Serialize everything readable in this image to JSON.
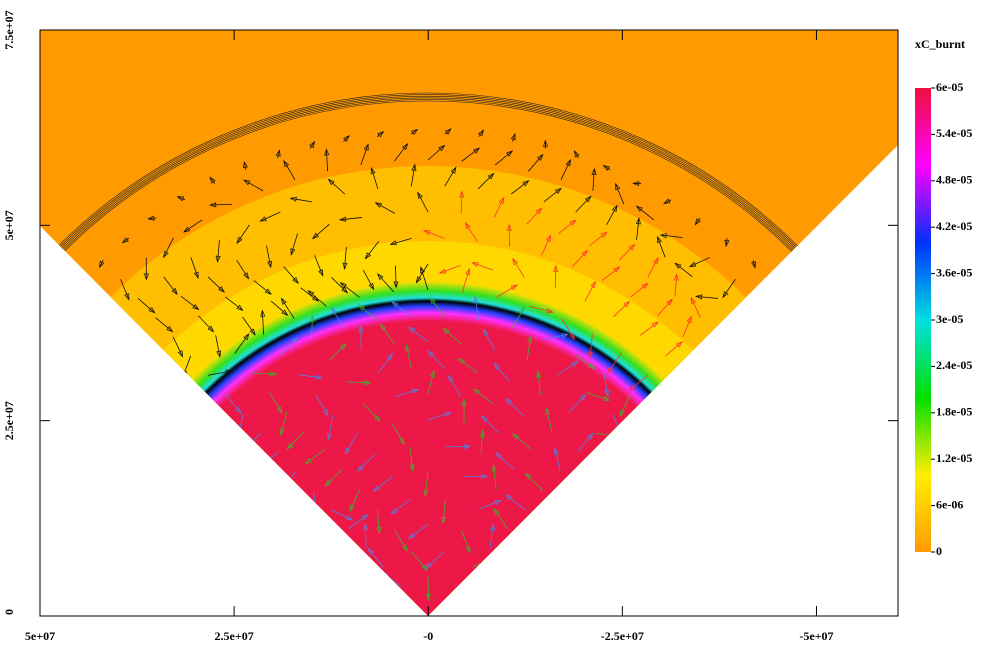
{
  "chart_data": {
    "type": "field",
    "colorbar_label": "xC_burnt",
    "xlim": [
      50000000,
      -60500000
    ],
    "ylim": [
      0,
      75000000
    ],
    "xticks": [
      {
        "value": 50000000,
        "label": "5e+07"
      },
      {
        "value": 25000000,
        "label": "2.5e+07"
      },
      {
        "value": 0,
        "label": "-0"
      },
      {
        "value": -25000000,
        "label": "-2.5e+07"
      },
      {
        "value": -50000000,
        "label": "-5e+07"
      }
    ],
    "yticks": [
      0,
      {
        "value": 25000000,
        "label": "2.5e+07"
      },
      {
        "value": 50000000,
        "label": "5e+07"
      },
      {
        "value": 75000000,
        "label": "7.5e+07"
      }
    ],
    "clim": [
      0,
      6e-05
    ],
    "cticks": [
      0,
      {
        "value": 6e-06,
        "label": "6e-06"
      },
      {
        "value": 1.2e-05,
        "label": "1.2e-05"
      },
      {
        "value": 1.8e-05,
        "label": "1.8e-05"
      },
      {
        "value": 2.4e-05,
        "label": "2.4e-05"
      },
      {
        "value": 3e-05,
        "label": "3e-05"
      },
      {
        "value": 3.6e-05,
        "label": "3.6e-05"
      },
      {
        "value": 4.2e-05,
        "label": "4.2e-05"
      },
      {
        "value": 4.8e-05,
        "label": "4.8e-05"
      },
      {
        "value": 5.4e-05,
        "label": "5.4e-05"
      },
      {
        "value": 6e-05,
        "label": "6e-05"
      }
    ],
    "colormap": [
      "#ff9a00",
      "#ffee00",
      "#00e000",
      "#00e0e0",
      "#0030ff",
      "#ff00ff",
      "#ee1040"
    ]
  }
}
